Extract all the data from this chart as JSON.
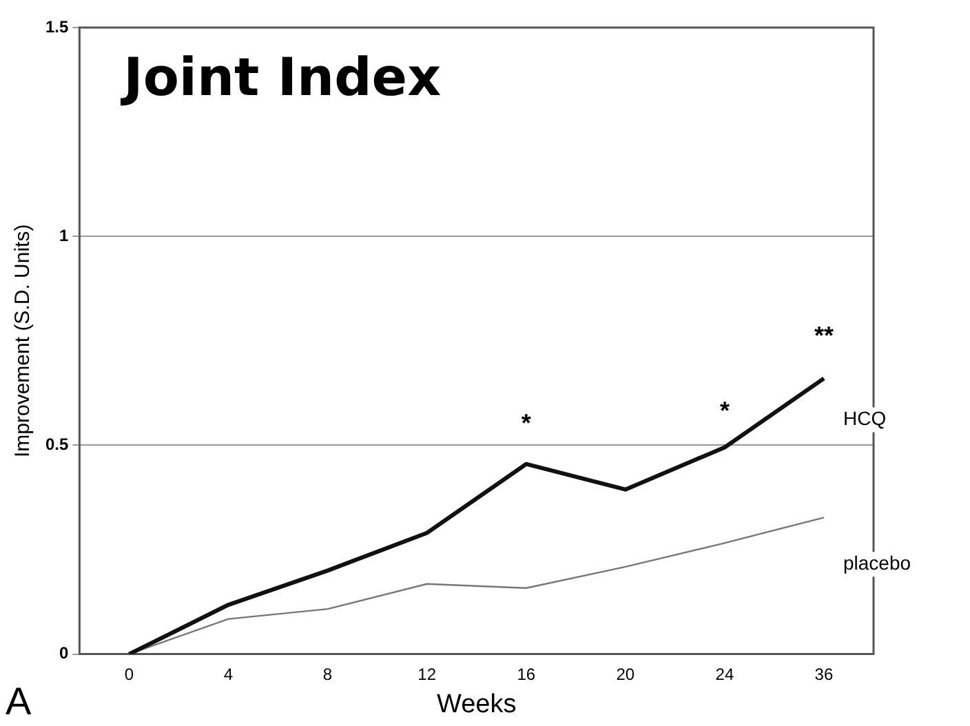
{
  "chart_data": {
    "type": "line",
    "title": "Joint Index",
    "xlabel": "Weeks",
    "ylabel": "Improvement (S.D. Units)",
    "categories": [
      "0",
      "4",
      "8",
      "12",
      "16",
      "20",
      "24",
      "36"
    ],
    "series": [
      {
        "name": "HCQ",
        "color": "#111111",
        "values": [
          0,
          0.118,
          0.2,
          0.29,
          0.455,
          0.394,
          0.495,
          0.66
        ]
      },
      {
        "name": "placebo",
        "color": "#777777",
        "values": [
          0,
          0.084,
          0.108,
          0.168,
          0.158,
          0.209,
          0.266,
          0.327
        ]
      }
    ],
    "ylim": [
      0,
      1.5
    ],
    "yticks": [
      0,
      0.5,
      1,
      1.5
    ],
    "grid": "y",
    "marker": "none",
    "line_style": "solid",
    "legend": false,
    "annotations": [
      "*",
      "*",
      "**",
      "A"
    ]
  }
}
